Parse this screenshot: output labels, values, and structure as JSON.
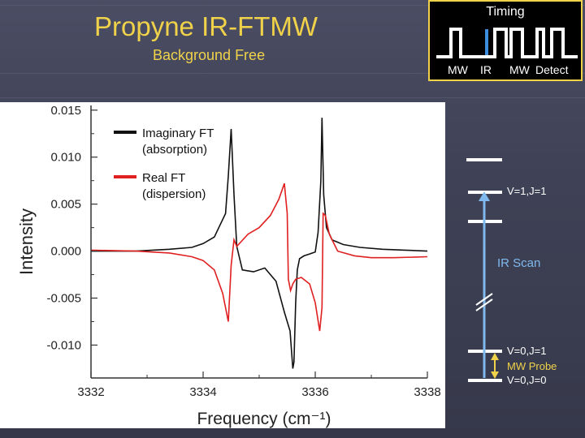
{
  "slide": {
    "title": "Propyne IR-FTMW",
    "subtitle": "Background Free"
  },
  "timing": {
    "title": "Timing",
    "labels": [
      "MW",
      "IR",
      "MW",
      "Detect"
    ],
    "colors": {
      "pulse": "#ffffff",
      "ir_pulse": "#3b8de0",
      "border": "#f0d24a"
    }
  },
  "energy_diagram": {
    "levels": [
      "V=1,J=1",
      "V=0,J=1",
      "V=0,J=0"
    ],
    "ir_label": "IR Scan",
    "mw_label": "MW Probe",
    "colors": {
      "ir_arrow": "#7fb9ee",
      "mw_arrow": "#f0d24a",
      "level": "#ffffff"
    }
  },
  "chart_data": {
    "type": "line",
    "xlabel": "Frequency (cm⁻¹)",
    "ylabel": "Intensity",
    "xlim": [
      3332,
      3338
    ],
    "ylim": [
      -0.0135,
      0.0155
    ],
    "x_ticks": [
      3332,
      3334,
      3336,
      3338
    ],
    "x_tick_labels": [
      "3332",
      "3334",
      "3336",
      "3338"
    ],
    "y_ticks": [
      0.015,
      0.01,
      0.005,
      0.0,
      -0.005,
      -0.01
    ],
    "y_tick_labels": [
      "0.015",
      "0.010",
      "0.005",
      "0.000",
      "-0.005",
      "-0.010"
    ],
    "legend_position": "top-left",
    "series": [
      {
        "name": "Imaginary FT (absorption)",
        "color": "#111111",
        "x": [
          3332.0,
          3332.8,
          3333.4,
          3333.8,
          3334.0,
          3334.2,
          3334.4,
          3334.45,
          3334.5,
          3334.55,
          3334.6,
          3334.7,
          3334.9,
          3335.1,
          3335.3,
          3335.45,
          3335.55,
          3335.6,
          3335.62,
          3335.65,
          3335.68,
          3335.72,
          3335.8,
          3335.9,
          3336.0,
          3336.05,
          3336.1,
          3336.12,
          3336.15,
          3336.2,
          3336.3,
          3336.5,
          3336.8,
          3337.2,
          3337.6,
          3338.0
        ],
        "y": [
          0.0,
          0.0,
          0.0002,
          0.0004,
          0.0008,
          0.0015,
          0.004,
          0.008,
          0.013,
          0.006,
          0.0005,
          -0.002,
          -0.0022,
          -0.0018,
          -0.0032,
          -0.0065,
          -0.0085,
          -0.0125,
          -0.0118,
          -0.0055,
          -0.002,
          -0.0008,
          -0.0005,
          -0.0003,
          -0.0001,
          0.002,
          0.0075,
          0.0142,
          0.006,
          0.0025,
          0.0012,
          0.0007,
          0.0004,
          0.0002,
          0.0001,
          0.0
        ]
      },
      {
        "name": "Real FT (dispersion)",
        "color": "#e02020",
        "x": [
          3332.0,
          3332.8,
          3333.4,
          3333.8,
          3334.0,
          3334.2,
          3334.35,
          3334.45,
          3334.5,
          3334.55,
          3334.6,
          3334.8,
          3335.0,
          3335.2,
          3335.35,
          3335.45,
          3335.5,
          3335.52,
          3335.56,
          3335.6,
          3335.65,
          3335.75,
          3335.9,
          3336.0,
          3336.08,
          3336.12,
          3336.14,
          3336.18,
          3336.25,
          3336.4,
          3336.7,
          3337.0,
          3337.4,
          3338.0
        ],
        "y": [
          0.0001,
          0.0,
          -0.0002,
          -0.0006,
          -0.001,
          -0.002,
          -0.0045,
          -0.0075,
          -0.0015,
          0.0012,
          0.0005,
          0.0018,
          0.0025,
          0.0038,
          0.0055,
          0.0072,
          0.004,
          -0.003,
          -0.0042,
          -0.0035,
          -0.003,
          -0.0028,
          -0.0035,
          -0.0055,
          -0.0085,
          -0.006,
          0.004,
          0.0038,
          0.0018,
          0.0,
          -0.0005,
          -0.0007,
          -0.0007,
          -0.0006
        ]
      }
    ]
  }
}
